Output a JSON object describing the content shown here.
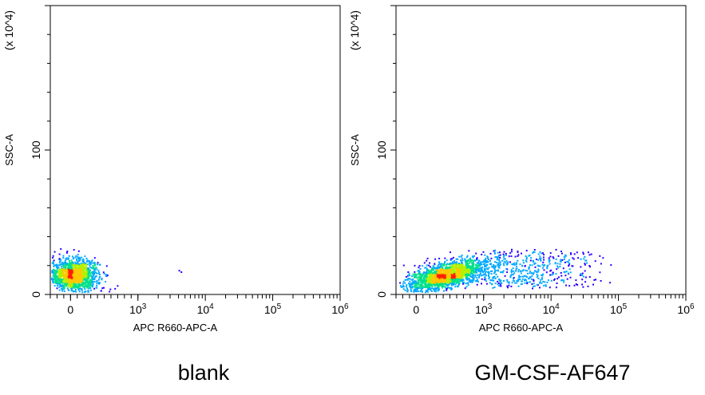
{
  "chart_data": [
    {
      "type": "scatter",
      "title": "blank",
      "xlabel": "APC R660-APC-A",
      "ylabel": "SSC-A",
      "y_multiplier_label": "(x 10^4)",
      "x_scale": "biexponential",
      "x_ticks": [
        {
          "value": 0,
          "base": "0",
          "exp": ""
        },
        {
          "value": 1000,
          "base": "10",
          "exp": "3"
        },
        {
          "value": 10000,
          "base": "10",
          "exp": "4"
        },
        {
          "value": 100000,
          "base": "10",
          "exp": "5"
        },
        {
          "value": 1000000,
          "base": "10",
          "exp": "6"
        }
      ],
      "y_ticks": [
        {
          "value": 0,
          "label": "0"
        },
        {
          "value": 100,
          "label": "100"
        }
      ],
      "xlim": [
        -300,
        1000000
      ],
      "ylim": [
        0,
        200
      ],
      "grid": false,
      "population": {
        "center_x": 40,
        "center_y": 14,
        "count": 1400
      },
      "outliers": [
        {
          "x": 4000,
          "y": 17
        },
        {
          "x": 4300,
          "y": 16
        }
      ]
    },
    {
      "type": "scatter",
      "title": "GM-CSF-AF647",
      "xlabel": "APC R660-APC-A",
      "ylabel": "SSC-A",
      "y_multiplier_label": "(x 10^4)",
      "x_scale": "biexponential",
      "x_ticks": [
        {
          "value": 0,
          "base": "0",
          "exp": ""
        },
        {
          "value": 1000,
          "base": "10",
          "exp": "3"
        },
        {
          "value": 10000,
          "base": "10",
          "exp": "4"
        },
        {
          "value": 100000,
          "base": "10",
          "exp": "5"
        },
        {
          "value": 1000000,
          "base": "10",
          "exp": "6"
        }
      ],
      "y_ticks": [
        {
          "value": 0,
          "label": "0"
        },
        {
          "value": 100,
          "label": "100"
        }
      ],
      "xlim": [
        -300,
        1000000
      ],
      "ylim": [
        0,
        200
      ],
      "grid": false,
      "population": {
        "center_x": 450,
        "center_y": 14,
        "count": 1800
      },
      "tail": {
        "x_max": 80000,
        "count": 450
      }
    }
  ]
}
